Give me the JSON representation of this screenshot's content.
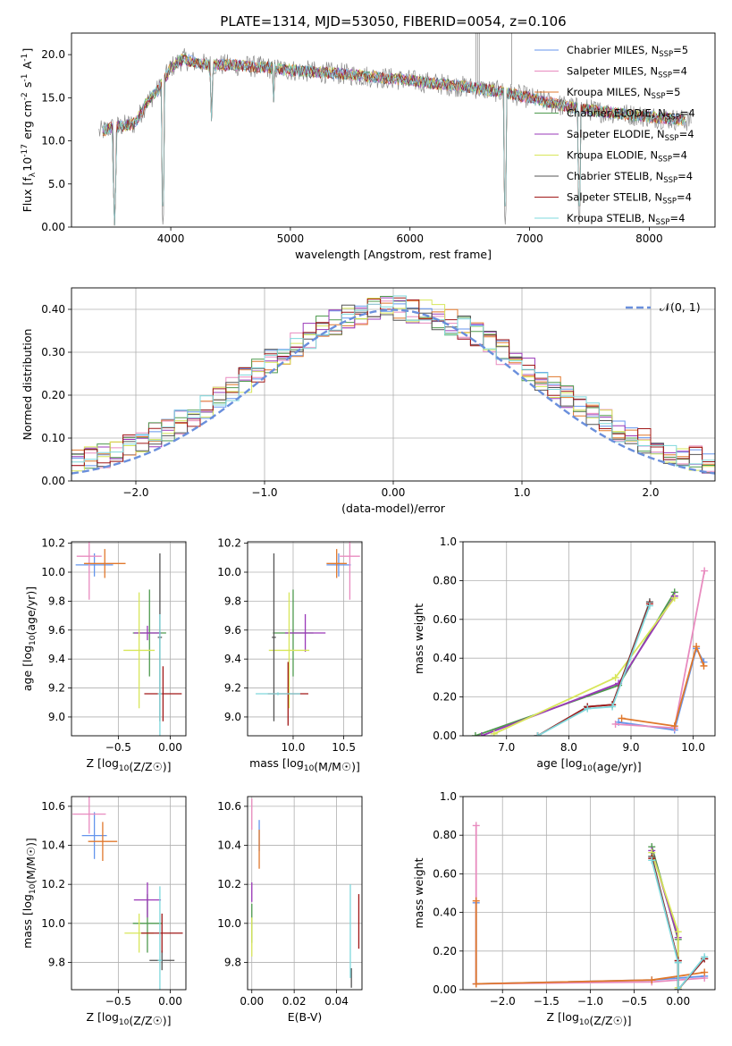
{
  "title": "PLATE=1314, MJD=53050, FIBERID=0054, z=0.106",
  "colors": {
    "Chabrier MILES": "#6495ed",
    "Salpeter MILES": "#e88bbf",
    "Kroupa MILES": "#e0782c",
    "Chabrier ELODIE": "#4e9a4e",
    "Salpeter ELODIE": "#9a38b8",
    "Kroupa ELODIE": "#d8e65a",
    "Chabrier STELIB": "#555555",
    "Salpeter STELIB": "#a01818",
    "Kroupa STELIB": "#7fd8dc",
    "gaussian": "#6a8fdc"
  },
  "chart_data": [
    {
      "id": "spectrum",
      "type": "line",
      "xlabel": "wavelength [Angstrom, rest frame]",
      "ylabel": "Flux [f_λ10^{-17} erg cm^{-2} s^{-1} A^{-1}]",
      "xlim": [
        3170,
        8550
      ],
      "ylim": [
        0,
        22.5
      ],
      "xticks": [
        4000,
        5000,
        6000,
        7000,
        8000
      ],
      "yticks": [
        0,
        5,
        10,
        15,
        20
      ],
      "grid": false,
      "legend_position": "upper-right",
      "series": [
        {
          "name": "Chabrier MILES",
          "nssp": "5"
        },
        {
          "name": "Salpeter MILES",
          "nssp": "4"
        },
        {
          "name": "Kroupa MILES",
          "nssp": "5"
        },
        {
          "name": "Chabrier ELODIE",
          "nssp": "4"
        },
        {
          "name": "Salpeter ELODIE",
          "nssp": "4"
        },
        {
          "name": "Kroupa ELODIE",
          "nssp": "4"
        },
        {
          "name": "Chabrier STELIB",
          "nssp": "4"
        },
        {
          "name": "Salpeter STELIB",
          "nssp": "4"
        },
        {
          "name": "Kroupa STELIB",
          "nssp": "4"
        }
      ],
      "continuum": {
        "x": [
          3400,
          3500,
          3700,
          3800,
          3900,
          4000,
          4100,
          4300,
          4500,
          4800,
          5000,
          5500,
          6000,
          6500,
          6800,
          7000,
          7300,
          7600,
          8000,
          8350
        ],
        "y": [
          11,
          11.5,
          12,
          14.5,
          16,
          18.5,
          19.5,
          18.8,
          18.8,
          18.5,
          18.2,
          17.7,
          17,
          16.2,
          15.6,
          15,
          14,
          13.4,
          12.8,
          12.3
        ]
      },
      "absorption_lines": [
        {
          "x": 3530,
          "y": 0.2
        },
        {
          "x": 3935,
          "y": 0
        },
        {
          "x": 4340,
          "y": 12.3
        },
        {
          "x": 4860,
          "y": 14.5
        },
        {
          "x": 6795,
          "y": 0
        },
        {
          "x": 7415,
          "y": 0
        }
      ],
      "emission_spikes": [
        {
          "x": 6550,
          "y": 22.5
        },
        {
          "x": 6565,
          "y": 22.5
        },
        {
          "x": 6580,
          "y": 22.5
        },
        {
          "x": 6850,
          "y": 22.5
        }
      ]
    },
    {
      "id": "residuals",
      "type": "line",
      "xlabel": "(data-model)/error",
      "ylabel": "Normed distribution",
      "xlim": [
        -2.5,
        2.5
      ],
      "ylim": [
        0,
        0.45
      ],
      "xticks": [
        -2,
        -1,
        0,
        1,
        2
      ],
      "yticks": [
        0.0,
        0.1,
        0.2,
        0.3,
        0.4
      ],
      "grid": true,
      "legend_position": "upper-right",
      "legend_label": "𝒩(0, 1)",
      "gaussian": {
        "mu": 0,
        "sigma": 1
      }
    },
    {
      "id": "age-vs-Z",
      "type": "scatter",
      "xlabel": "Z [log10(Z/Z☉)]",
      "ylabel": "age  [log10(age/yr)]",
      "xlim": [
        -0.95,
        0.15
      ],
      "ylim": [
        8.87,
        10.21
      ],
      "xticks": [
        -0.5,
        0.0
      ],
      "yticks": [
        9.0,
        9.2,
        9.4,
        9.6,
        9.8,
        10.0,
        10.2
      ],
      "grid": true,
      "points": [
        {
          "series": "Chabrier MILES",
          "x": -0.73,
          "y": 10.05,
          "xerr": 0.18,
          "yerr": 0.08
        },
        {
          "series": "Salpeter MILES",
          "x": -0.78,
          "y": 10.11,
          "xerr": 0.12,
          "yerr": 0.3
        },
        {
          "series": "Kroupa MILES",
          "x": -0.63,
          "y": 10.06,
          "xerr": 0.2,
          "yerr": 0.1
        },
        {
          "series": "Chabrier ELODIE",
          "x": -0.2,
          "y": 9.58,
          "xerr": 0.16,
          "yerr": 0.3
        },
        {
          "series": "Salpeter ELODIE",
          "x": -0.22,
          "y": 9.58,
          "xerr": 0.13,
          "yerr": 0.05
        },
        {
          "series": "Kroupa ELODIE",
          "x": -0.3,
          "y": 9.46,
          "xerr": 0.15,
          "yerr": 0.4
        },
        {
          "series": "Chabrier STELIB",
          "x": -0.1,
          "y": 9.55,
          "xerr": 0.02,
          "yerr": 0.58
        },
        {
          "series": "Salpeter STELIB",
          "x": -0.07,
          "y": 9.16,
          "xerr": 0.18,
          "yerr": 0.19
        },
        {
          "series": "Kroupa STELIB",
          "x": -0.1,
          "y": 9.16,
          "xerr": 0.02,
          "yerr": 0.55
        }
      ]
    },
    {
      "id": "age-vs-mass",
      "type": "scatter",
      "xlabel": "mass [log10(M/M☉)]",
      "ylabel": "",
      "xlim": [
        9.55,
        10.68
      ],
      "ylim": [
        8.87,
        10.21
      ],
      "xticks": [
        10.0,
        10.5
      ],
      "yticks": [
        9.0,
        9.2,
        9.4,
        9.6,
        9.8,
        10.0,
        10.2
      ],
      "grid": true,
      "points": [
        {
          "series": "Chabrier MILES",
          "x": 10.45,
          "y": 10.05,
          "xerr": 0.12,
          "yerr": 0.08
        },
        {
          "series": "Salpeter MILES",
          "x": 10.56,
          "y": 10.11,
          "xerr": 0.1,
          "yerr": 0.3
        },
        {
          "series": "Kroupa MILES",
          "x": 10.43,
          "y": 10.06,
          "xerr": 0.1,
          "yerr": 0.1
        },
        {
          "series": "Chabrier ELODIE",
          "x": 10.0,
          "y": 9.58,
          "xerr": 0.2,
          "yerr": 0.3
        },
        {
          "series": "Salpeter ELODIE",
          "x": 10.12,
          "y": 9.58,
          "xerr": 0.2,
          "yerr": 0.13
        },
        {
          "series": "Kroupa ELODIE",
          "x": 9.96,
          "y": 9.46,
          "xerr": 0.2,
          "yerr": 0.4
        },
        {
          "series": "Chabrier STELIB",
          "x": 9.81,
          "y": 9.55,
          "xerr": 0.02,
          "yerr": 0.58
        },
        {
          "series": "Salpeter STELIB",
          "x": 9.95,
          "y": 9.16,
          "xerr": 0.2,
          "yerr": 0.22
        },
        {
          "series": "Kroupa STELIB",
          "x": 9.85,
          "y": 9.16,
          "xerr": 0.22,
          "yerr": 0.01
        }
      ]
    },
    {
      "id": "weight-vs-age",
      "type": "line",
      "xlabel": "age  [log10(age/yr)]",
      "ylabel": "mass weight",
      "xlim": [
        6.3,
        10.35
      ],
      "ylim": [
        0,
        1.0
      ],
      "xticks": [
        7,
        8,
        9,
        10
      ],
      "yticks": [
        0.0,
        0.2,
        0.4,
        0.6,
        0.8,
        1.0
      ],
      "grid": true,
      "series": [
        {
          "name": "Chabrier MILES",
          "x": [
            8.8,
            9.7,
            10.05,
            10.17
          ],
          "y": [
            0.07,
            0.03,
            0.45,
            0.38
          ]
        },
        {
          "name": "Salpeter MILES",
          "x": [
            8.75,
            9.7,
            10.18
          ],
          "y": [
            0.06,
            0.04,
            0.85
          ]
        },
        {
          "name": "Kroupa MILES",
          "x": [
            8.85,
            9.7,
            10.05,
            10.17
          ],
          "y": [
            0.09,
            0.05,
            0.46,
            0.36
          ]
        },
        {
          "name": "Chabrier ELODIE",
          "x": [
            6.5,
            8.8,
            9.7
          ],
          "y": [
            0.0,
            0.26,
            0.74
          ]
        },
        {
          "name": "Salpeter ELODIE",
          "x": [
            6.6,
            8.8,
            9.7
          ],
          "y": [
            0.0,
            0.27,
            0.72
          ]
        },
        {
          "name": "Kroupa ELODIE",
          "x": [
            6.8,
            8.75,
            9.7
          ],
          "y": [
            0.01,
            0.3,
            0.71
          ]
        },
        {
          "name": "Chabrier STELIB",
          "x": [
            7.5,
            8.3,
            8.7,
            9.3
          ],
          "y": [
            0.0,
            0.15,
            0.16,
            0.69
          ]
        },
        {
          "name": "Salpeter STELIB",
          "x": [
            7.5,
            8.3,
            8.7,
            9.3
          ],
          "y": [
            0.0,
            0.15,
            0.16,
            0.68
          ]
        },
        {
          "name": "Kroupa STELIB",
          "x": [
            7.5,
            8.3,
            8.7,
            9.3
          ],
          "y": [
            0.0,
            0.14,
            0.15,
            0.67
          ]
        }
      ]
    },
    {
      "id": "mass-vs-Z",
      "type": "scatter",
      "xlabel": "Z [log10(Z/Z☉)]",
      "ylabel": "mass [log10(M/M☉)]",
      "xlim": [
        -0.95,
        0.15
      ],
      "ylim": [
        9.66,
        10.65
      ],
      "xticks": [
        -0.5,
        0.0
      ],
      "yticks": [
        9.8,
        10.0,
        10.2,
        10.4,
        10.6
      ],
      "grid": true,
      "points": [
        {
          "series": "Chabrier MILES",
          "x": -0.73,
          "y": 10.45,
          "xerr": 0.12,
          "yerr": 0.12
        },
        {
          "series": "Salpeter MILES",
          "x": -0.78,
          "y": 10.56,
          "xerr": 0.16,
          "yerr": 0.1
        },
        {
          "series": "Kroupa MILES",
          "x": -0.65,
          "y": 10.42,
          "xerr": 0.14,
          "yerr": 0.1
        },
        {
          "series": "Chabrier ELODIE",
          "x": -0.22,
          "y": 10.0,
          "xerr": 0.14,
          "yerr": 0.15
        },
        {
          "series": "Salpeter ELODIE",
          "x": -0.22,
          "y": 10.12,
          "xerr": 0.13,
          "yerr": 0.09
        },
        {
          "series": "Kroupa ELODIE",
          "x": -0.3,
          "y": 9.95,
          "xerr": 0.14,
          "yerr": 0.1
        },
        {
          "series": "Chabrier STELIB",
          "x": -0.08,
          "y": 9.81,
          "xerr": 0.12,
          "yerr": 0.05
        },
        {
          "series": "Salpeter STELIB",
          "x": -0.08,
          "y": 9.95,
          "xerr": 0.2,
          "yerr": 0.1
        },
        {
          "series": "Kroupa STELIB",
          "x": -0.1,
          "y": 9.81,
          "xerr": 0.02,
          "yerr": 0.38
        }
      ]
    },
    {
      "id": "mass-vs-EBV",
      "type": "scatter",
      "xlabel": "E(B-V)",
      "ylabel": "",
      "xlim": [
        -0.002,
        0.052
      ],
      "ylim": [
        9.66,
        10.65
      ],
      "xticks": [
        0.0,
        0.02,
        0.04
      ],
      "yticks": [
        9.8,
        10.0,
        10.2,
        10.4,
        10.6
      ],
      "grid": true,
      "points": [
        {
          "series": "Chabrier MILES",
          "x": 0.0035,
          "y": 10.45,
          "xerr": 0,
          "yerr": 0.08
        },
        {
          "series": "Salpeter MILES",
          "x": 0.0,
          "y": 10.56,
          "xerr": 0,
          "yerr": 0.08
        },
        {
          "series": "Kroupa MILES",
          "x": 0.0035,
          "y": 10.38,
          "xerr": 0,
          "yerr": 0.1
        },
        {
          "series": "Chabrier ELODIE",
          "x": 0.0,
          "y": 10.0,
          "xerr": 0,
          "yerr": 0.1
        },
        {
          "series": "Salpeter ELODIE",
          "x": 0.0,
          "y": 10.16,
          "xerr": 0,
          "yerr": 0.05
        },
        {
          "series": "Kroupa ELODIE",
          "x": 0.0,
          "y": 9.93,
          "xerr": 0,
          "yerr": 0.1
        },
        {
          "series": "Chabrier STELIB",
          "x": 0.047,
          "y": 9.72,
          "xerr": 0,
          "yerr": 0.05
        },
        {
          "series": "Salpeter STELIB",
          "x": 0.0505,
          "y": 10.01,
          "xerr": 0,
          "yerr": 0.14
        },
        {
          "series": "Kroupa STELIB",
          "x": 0.0465,
          "y": 9.96,
          "xerr": 0,
          "yerr": 0.24
        }
      ]
    },
    {
      "id": "weight-vs-Z",
      "type": "line",
      "xlabel": "Z [log10(Z/Z☉)]",
      "ylabel": "mass weight",
      "xlim": [
        -2.45,
        0.42
      ],
      "ylim": [
        0,
        1.0
      ],
      "xticks": [
        -2.0,
        -1.5,
        -1.0,
        -0.5,
        0.0
      ],
      "yticks": [
        0.0,
        0.2,
        0.4,
        0.6,
        0.8,
        1.0
      ],
      "grid": true,
      "series": [
        {
          "name": "Chabrier MILES",
          "x": [
            -2.3,
            -2.3,
            -0.3,
            0.3
          ],
          "y": [
            0.45,
            0.03,
            0.05,
            0.07
          ]
        },
        {
          "name": "Salpeter MILES",
          "x": [
            -2.3,
            -2.3,
            -0.3,
            0.3
          ],
          "y": [
            0.85,
            0.03,
            0.04,
            0.06
          ]
        },
        {
          "name": "Kroupa MILES",
          "x": [
            -2.3,
            -2.3,
            -0.3,
            0.3
          ],
          "y": [
            0.46,
            0.03,
            0.05,
            0.09
          ]
        },
        {
          "name": "Chabrier ELODIE",
          "x": [
            -0.3,
            0.0,
            0.0
          ],
          "y": [
            0.74,
            0.26,
            0.0
          ]
        },
        {
          "name": "Salpeter ELODIE",
          "x": [
            -0.3,
            0.0,
            0.0
          ],
          "y": [
            0.72,
            0.27,
            0.0
          ]
        },
        {
          "name": "Kroupa ELODIE",
          "x": [
            -0.3,
            0.0,
            0.0
          ],
          "y": [
            0.71,
            0.3,
            0.01
          ]
        },
        {
          "name": "Chabrier STELIB",
          "x": [
            -0.3,
            0.0,
            0.0,
            0.3
          ],
          "y": [
            0.69,
            0.15,
            0.0,
            0.16
          ]
        },
        {
          "name": "Salpeter STELIB",
          "x": [
            -0.3,
            0.0,
            0.0,
            0.3
          ],
          "y": [
            0.68,
            0.15,
            0.0,
            0.16
          ]
        },
        {
          "name": "Kroupa STELIB",
          "x": [
            -0.3,
            0.0,
            0.0,
            0.3
          ],
          "y": [
            0.67,
            0.14,
            0.0,
            0.17
          ]
        }
      ]
    }
  ]
}
